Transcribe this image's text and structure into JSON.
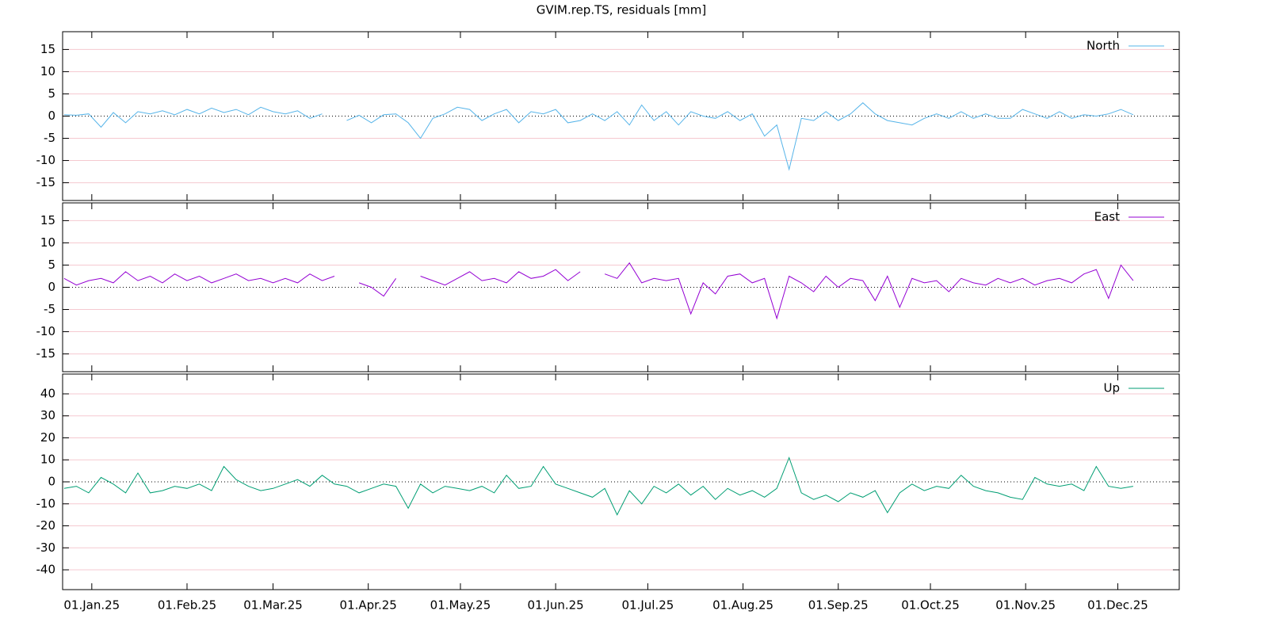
{
  "chart_data": {
    "type": "line",
    "title": "GVIM.rep.TS, residuals [mm]",
    "xlim": [
      -9.5,
      354
    ],
    "xticks": [
      {
        "value": 0,
        "label": "01.Jan.25"
      },
      {
        "value": 31,
        "label": "01.Feb.25"
      },
      {
        "value": 59,
        "label": "01.Mar.25"
      },
      {
        "value": 90,
        "label": "01.Apr.25"
      },
      {
        "value": 120,
        "label": "01.May.25"
      },
      {
        "value": 151,
        "label": "01.Jun.25"
      },
      {
        "value": 181,
        "label": "01.Jul.25"
      },
      {
        "value": 212,
        "label": "01.Aug.25"
      },
      {
        "value": 243,
        "label": "01.Sep.25"
      },
      {
        "value": 273,
        "label": "01.Oct.25"
      },
      {
        "value": 304,
        "label": "01.Nov.25"
      },
      {
        "value": 334,
        "label": "01.Dec.25"
      }
    ],
    "x": [
      -9,
      -5,
      -1,
      3,
      7,
      11,
      15,
      19,
      23,
      27,
      31,
      35,
      39,
      43,
      47,
      51,
      55,
      59,
      63,
      67,
      71,
      75,
      79,
      83,
      87,
      91,
      95,
      99,
      103,
      107,
      111,
      115,
      119,
      123,
      127,
      131,
      135,
      139,
      143,
      147,
      151,
      155,
      159,
      163,
      167,
      171,
      175,
      179,
      183,
      187,
      191,
      195,
      199,
      203,
      207,
      211,
      215,
      219,
      223,
      227,
      231,
      235,
      239,
      243,
      247,
      251,
      255,
      259,
      263,
      267,
      271,
      275,
      279,
      283,
      287,
      291,
      295,
      299,
      303,
      307,
      311,
      315,
      319,
      323,
      327,
      331,
      335,
      339
    ],
    "series": [
      {
        "name": "North",
        "color": "#56b4e9",
        "ylim": [
          -19,
          19
        ],
        "yticks": [
          -15,
          -10,
          -5,
          0,
          5,
          10,
          15
        ],
        "values": [
          0.3,
          0.2,
          0.5,
          -2.5,
          0.8,
          -1.5,
          1,
          0.5,
          1.2,
          0.3,
          1.5,
          0.5,
          1.8,
          0.8,
          1.5,
          0.3,
          2,
          1,
          0.5,
          1.2,
          -0.5,
          0.5,
          null,
          -1,
          0.2,
          -1.5,
          0.3,
          0.5,
          -1.5,
          -5,
          -0.5,
          0.5,
          2,
          1.5,
          -1,
          0.5,
          1.5,
          -1.5,
          1,
          0.5,
          1.5,
          -1.5,
          -1,
          0.5,
          -1,
          1,
          -2,
          2.5,
          -1,
          1,
          -2,
          1,
          0,
          -0.5,
          1,
          -1,
          0.5,
          -4.5,
          -2,
          -12,
          -0.5,
          -1,
          1,
          -1,
          0.5,
          3,
          0.5,
          -1,
          -1.5,
          -2,
          -0.5,
          0.5,
          -0.5,
          1,
          -0.5,
          0.5,
          -0.5,
          -0.5,
          1.5,
          0.5,
          -0.5,
          1,
          -0.5,
          0.3,
          0,
          0.5,
          1.5,
          0.3
        ]
      },
      {
        "name": "East",
        "color": "#9400d3",
        "ylim": [
          -19,
          19
        ],
        "yticks": [
          -15,
          -10,
          -5,
          0,
          5,
          10,
          15
        ],
        "values": [
          2,
          0.5,
          1.5,
          2,
          1,
          3.5,
          1.5,
          2.5,
          1,
          3,
          1.5,
          2.5,
          1,
          2,
          3,
          1.5,
          2,
          1,
          2,
          1,
          3,
          1.5,
          2.5,
          null,
          1,
          0,
          -2,
          2,
          null,
          2.5,
          1.5,
          0.5,
          2,
          3.5,
          1.5,
          2,
          1,
          3.5,
          2,
          2.5,
          4,
          1.5,
          3.5,
          null,
          3,
          2,
          5.5,
          1,
          2,
          1.5,
          2,
          -6,
          1,
          -1.5,
          2.5,
          3,
          1,
          2,
          -7,
          2.5,
          1,
          -1,
          2.5,
          0,
          2,
          1.5,
          -3,
          2.5,
          -4.5,
          2,
          1,
          1.5,
          -1,
          2,
          1,
          0.5,
          2,
          1,
          2,
          0.5,
          1.5,
          2,
          1,
          3,
          4,
          -2.5,
          5,
          1.5
        ]
      },
      {
        "name": "Up",
        "color": "#009e73",
        "ylim": [
          -49,
          49
        ],
        "yticks": [
          -40,
          -30,
          -20,
          -10,
          0,
          10,
          20,
          30,
          40
        ],
        "values": [
          -3,
          -2,
          -5,
          2,
          -1,
          -5,
          4,
          -5,
          -4,
          -2,
          -3,
          -1,
          -4,
          7,
          1,
          -2,
          -4,
          -3,
          -1,
          1,
          -2,
          3,
          -1,
          -2,
          -5,
          -3,
          -1,
          -2,
          -12,
          -1,
          -5,
          -2,
          -3,
          -4,
          -2,
          -5,
          3,
          -3,
          -2,
          7,
          -1,
          -3,
          -5,
          -7,
          -3,
          -15,
          -4,
          -10,
          -2,
          -5,
          -1,
          -6,
          -2,
          -8,
          -3,
          -6,
          -4,
          -7,
          -3,
          11,
          -5,
          -8,
          -6,
          -9,
          -5,
          -7,
          -4,
          -14,
          -5,
          -1,
          -4,
          -2,
          -3,
          3,
          -2,
          -4,
          -5,
          -7,
          -8,
          2,
          -1,
          -2,
          -1,
          -4,
          7,
          -2,
          -3,
          -2
        ]
      }
    ]
  }
}
